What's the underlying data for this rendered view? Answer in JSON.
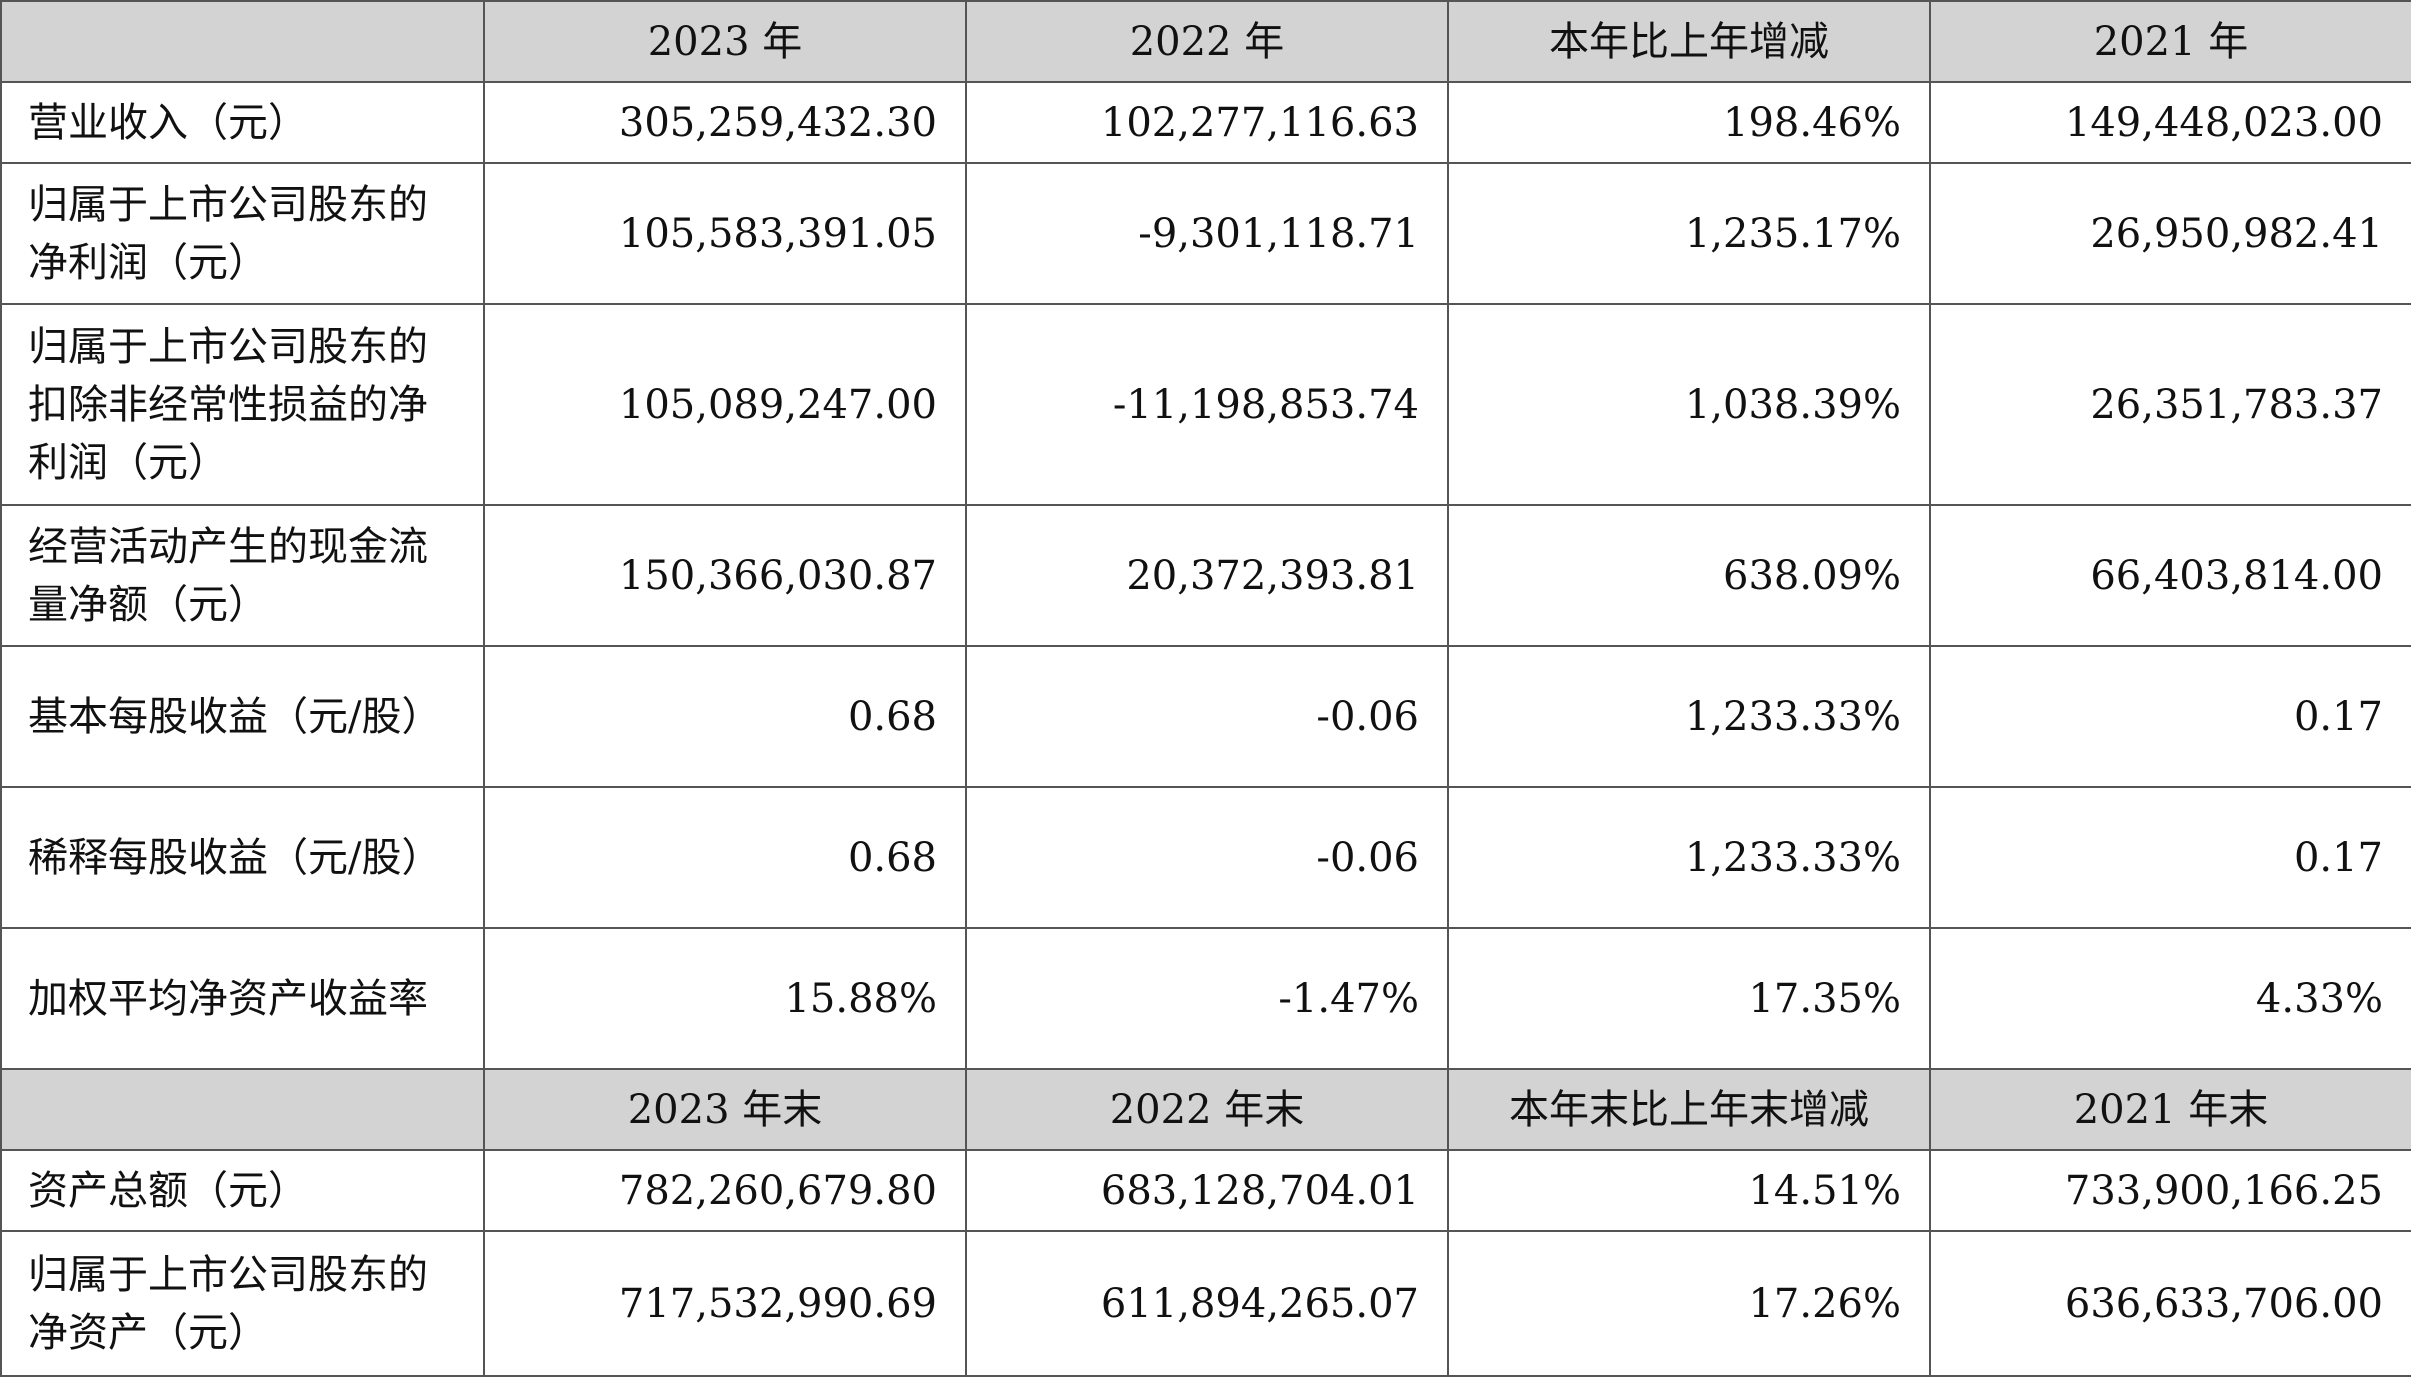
{
  "header1": {
    "c1": "2023 年",
    "c2": "2022 年",
    "c3": "本年比上年增减",
    "c4": "2021 年"
  },
  "rows1": [
    {
      "label": "营业收入（元）",
      "v2023": "305,259,432.30",
      "v2022": "102,277,116.63",
      "change": "198.46%",
      "v2021": "149,448,023.00"
    },
    {
      "label": "归属于上市公司股东的净利润（元）",
      "v2023": "105,583,391.05",
      "v2022": "-9,301,118.71",
      "change": "1,235.17%",
      "v2021": "26,950,982.41"
    },
    {
      "label": "归属于上市公司股东的扣除非经常性损益的净利润（元）",
      "v2023": "105,089,247.00",
      "v2022": "-11,198,853.74",
      "change": "1,038.39%",
      "v2021": "26,351,783.37"
    },
    {
      "label": "经营活动产生的现金流量净额（元）",
      "v2023": "150,366,030.87",
      "v2022": "20,372,393.81",
      "change": "638.09%",
      "v2021": "66,403,814.00"
    },
    {
      "label": "基本每股收益（元/股）",
      "v2023": "0.68",
      "v2022": "-0.06",
      "change": "1,233.33%",
      "v2021": "0.17"
    },
    {
      "label": "稀释每股收益（元/股）",
      "v2023": "0.68",
      "v2022": "-0.06",
      "change": "1,233.33%",
      "v2021": "0.17"
    },
    {
      "label": "加权平均净资产收益率",
      "v2023": "15.88%",
      "v2022": "-1.47%",
      "change": "17.35%",
      "v2021": "4.33%"
    }
  ],
  "header2": {
    "c1": "2023 年末",
    "c2": "2022 年末",
    "c3": "本年末比上年末增减",
    "c4": "2021 年末"
  },
  "rows2": [
    {
      "label": "资产总额（元）",
      "v2023": "782,260,679.80",
      "v2022": "683,128,704.01",
      "change": "14.51%",
      "v2021": "733,900,166.25"
    },
    {
      "label": "归属于上市公司股东的净资产（元）",
      "v2023": "717,532,990.69",
      "v2022": "611,894,265.07",
      "change": "17.26%",
      "v2021": "636,633,706.00"
    }
  ]
}
